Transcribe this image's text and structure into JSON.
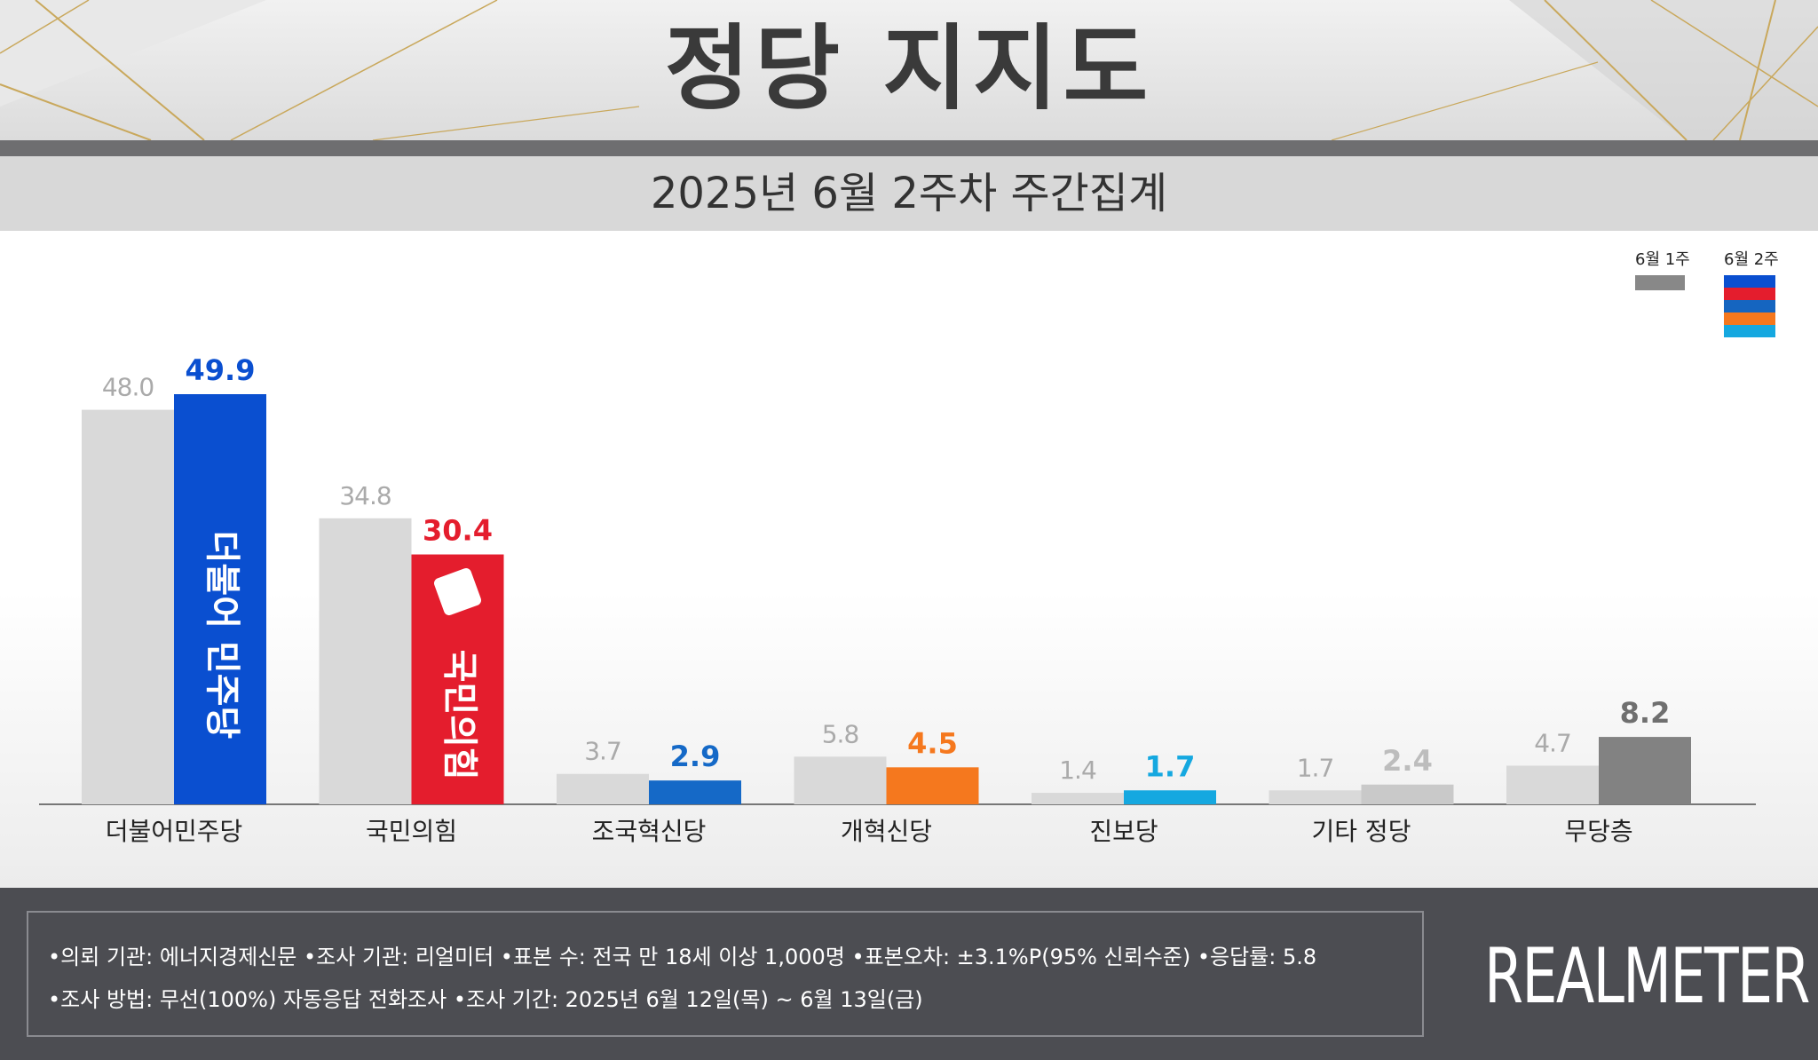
{
  "header": {
    "title": "정당 지지도",
    "subtitle": "2025년 6월 2주차 주간집계"
  },
  "legend": {
    "prev_label": "6월 1주",
    "curr_label": "6월 2주",
    "prev_color": "#888888",
    "curr_colors": [
      "#0a4fd0",
      "#e41d2d",
      "#1565c0",
      "#f5781e",
      "#15a8e0"
    ]
  },
  "chart_data": {
    "type": "bar",
    "categories": [
      "더불어민주당",
      "국민의힘",
      "조국혁신당",
      "개혁신당",
      "진보당",
      "기타 정당",
      "무당층"
    ],
    "series": [
      {
        "name": "6월 1주",
        "values": [
          48.0,
          34.8,
          3.7,
          5.8,
          1.4,
          1.7,
          4.7
        ],
        "labels": [
          "48.0",
          "34.8",
          "3.7",
          "5.8",
          "1.4",
          "1.7",
          "4.7"
        ],
        "color": "#d9d9d9"
      },
      {
        "name": "6월 2주",
        "values": [
          49.9,
          30.4,
          2.9,
          4.5,
          1.7,
          2.4,
          8.2
        ],
        "labels": [
          "49.9",
          "30.4",
          "2.9",
          "4.5",
          "1.7",
          "2.4",
          "8.2"
        ],
        "colors": [
          "#0a4fd0",
          "#e41d2d",
          "#1569c7",
          "#f5781e",
          "#15a8e0",
          "#c9c9c9",
          "#828282"
        ],
        "label_colors": [
          "#0a4fd0",
          "#e41d2d",
          "#1569c7",
          "#f5781e",
          "#15a8e0",
          "#bdbdbd",
          "#6f6f6f"
        ]
      }
    ],
    "bar_logos": [
      "더불어 민주당",
      "국민의힘"
    ],
    "ylim": [
      0,
      60
    ],
    "grid": false,
    "legend_position": "top-right"
  },
  "footer": {
    "line1": "•의뢰 기관: 에너지경제신문  •조사 기관: 리얼미터 •표본 수: 전국 만 18세 이상 1,000명 •표본오차: ±3.1%P(95% 신뢰수준) •응답률: 5.8",
    "line2": "•조사 방법: 무선(100%) 자동응답 전화조사 •조사 기간: 2025년 6월 12일(목) ~ 6월 13일(금)",
    "brand": "REALMETER"
  }
}
